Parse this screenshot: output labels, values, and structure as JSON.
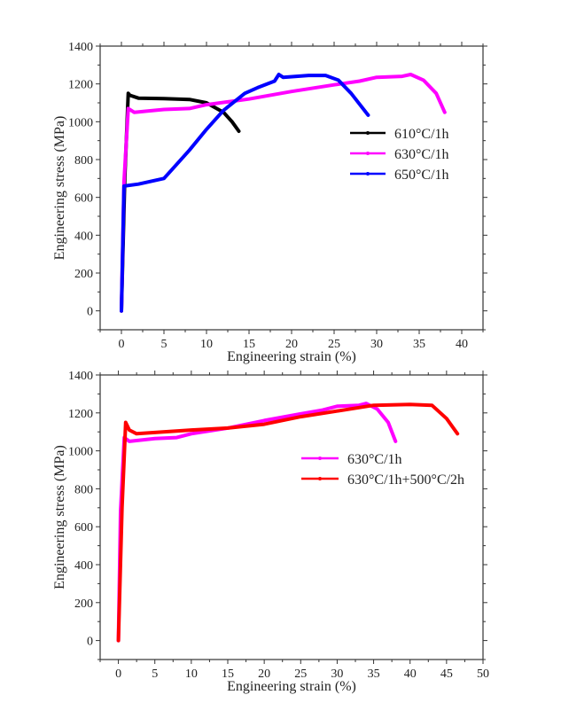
{
  "chart_data": [
    {
      "type": "line",
      "xlabel": "Engineering strain (%)",
      "ylabel": "Engineering stress (MPa)",
      "xlim": [
        -2.5,
        42.5
      ],
      "ylim": [
        -100,
        1400
      ],
      "xticks": [
        0,
        5,
        10,
        15,
        20,
        25,
        30,
        35,
        40
      ],
      "yticks": [
        0,
        200,
        400,
        600,
        800,
        1000,
        1200,
        1400
      ],
      "legend_position": "right",
      "series": [
        {
          "name": "610°C/1h",
          "color": "#000000",
          "marker": "square",
          "points": [
            [
              0,
              0
            ],
            [
              0.4,
              700
            ],
            [
              0.8,
              1150
            ],
            [
              1,
              1140
            ],
            [
              2,
              1125
            ],
            [
              5,
              1122
            ],
            [
              8,
              1118
            ],
            [
              10,
              1100
            ],
            [
              12,
              1050
            ],
            [
              13,
              1000
            ],
            [
              13.8,
              950
            ]
          ]
        },
        {
          "name": "630°C/1h",
          "color": "#ff00ff",
          "marker": "circle",
          "points": [
            [
              0,
              0
            ],
            [
              0.3,
              680
            ],
            [
              0.8,
              1070
            ],
            [
              1.5,
              1050
            ],
            [
              5,
              1065
            ],
            [
              8,
              1070
            ],
            [
              10,
              1090
            ],
            [
              15,
              1120
            ],
            [
              20,
              1160
            ],
            [
              25,
              1195
            ],
            [
              28,
              1215
            ],
            [
              30,
              1235
            ],
            [
              33,
              1240
            ],
            [
              34,
              1250
            ],
            [
              35.5,
              1220
            ],
            [
              37,
              1150
            ],
            [
              38,
              1050
            ]
          ]
        },
        {
          "name": "650°C/1h",
          "color": "#0000ff",
          "marker": "triangle",
          "points": [
            [
              0,
              0
            ],
            [
              0.3,
              660
            ],
            [
              2,
              670
            ],
            [
              5,
              700
            ],
            [
              6,
              750
            ],
            [
              8,
              850
            ],
            [
              10,
              960
            ],
            [
              12,
              1060
            ],
            [
              14.5,
              1150
            ],
            [
              16,
              1180
            ],
            [
              18,
              1215
            ],
            [
              18.5,
              1250
            ],
            [
              19,
              1235
            ],
            [
              22,
              1245
            ],
            [
              24,
              1245
            ],
            [
              25.5,
              1220
            ],
            [
              27,
              1150
            ],
            [
              29,
              1035
            ]
          ]
        }
      ]
    },
    {
      "type": "line",
      "xlabel": "Engineering strain (%)",
      "ylabel": "Engineering stress (MPa)",
      "xlim": [
        -2.5,
        50
      ],
      "ylim": [
        -100,
        1400
      ],
      "xticks": [
        0,
        5,
        10,
        15,
        20,
        25,
        30,
        35,
        40,
        45,
        50
      ],
      "yticks": [
        0,
        200,
        400,
        600,
        800,
        1000,
        1200,
        1400
      ],
      "legend_position": "right",
      "series": [
        {
          "name": "630°C/1h",
          "color": "#ff00ff",
          "marker": "circle",
          "points": [
            [
              0,
              0
            ],
            [
              0.3,
              680
            ],
            [
              0.8,
              1070
            ],
            [
              1.5,
              1050
            ],
            [
              5,
              1065
            ],
            [
              8,
              1070
            ],
            [
              10,
              1090
            ],
            [
              15,
              1120
            ],
            [
              20,
              1160
            ],
            [
              25,
              1195
            ],
            [
              28,
              1215
            ],
            [
              30,
              1235
            ],
            [
              33,
              1240
            ],
            [
              34,
              1250
            ],
            [
              35.5,
              1220
            ],
            [
              37,
              1150
            ],
            [
              38,
              1050
            ]
          ]
        },
        {
          "name": "630°C/1h+500°C/2h",
          "color": "#ff0000",
          "marker": "triangle",
          "points": [
            [
              0,
              0
            ],
            [
              0.5,
              700
            ],
            [
              1,
              1150
            ],
            [
              1.5,
              1110
            ],
            [
              2.5,
              1090
            ],
            [
              10,
              1110
            ],
            [
              15,
              1120
            ],
            [
              20,
              1140
            ],
            [
              25,
              1180
            ],
            [
              30,
              1210
            ],
            [
              35,
              1240
            ],
            [
              40,
              1245
            ],
            [
              43,
              1240
            ],
            [
              45,
              1170
            ],
            [
              46.5,
              1090
            ]
          ]
        }
      ]
    }
  ]
}
